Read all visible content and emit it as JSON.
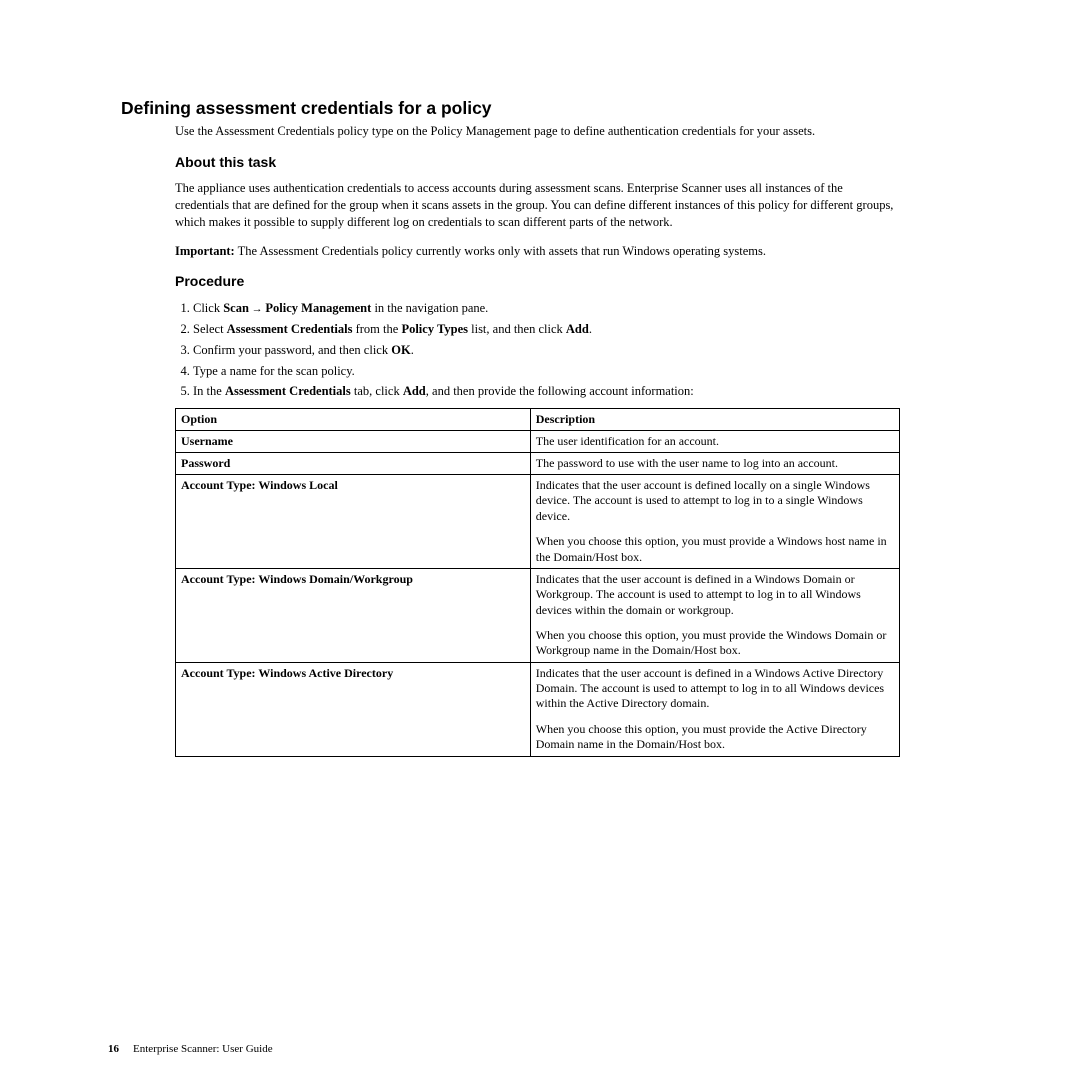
{
  "section_title": "Defining assessment credentials for a policy",
  "intro": "Use the Assessment Credentials policy type on the Policy Management page to define authentication credentials for your assets.",
  "about_head": "About this task",
  "about_p1": "The appliance uses authentication credentials to access accounts during assessment scans. Enterprise Scanner uses all instances of the credentials that are defined for the group when it scans assets in the group. You can define different instances of this policy for different groups, which makes it possible to supply different log on credentials to scan different parts of the network.",
  "important_label": "Important:",
  "important_text": " The Assessment Credentials policy currently works only with assets that run Windows operating systems.",
  "procedure_head": "Procedure",
  "proc": {
    "s1a": "Click ",
    "s1b": "Scan",
    "s1c": " → ",
    "s1d": "Policy Management",
    "s1e": " in the navigation pane.",
    "s2a": "Select ",
    "s2b": "Assessment Credentials",
    "s2c": " from the ",
    "s2d": "Policy Types",
    "s2e": " list, and then click ",
    "s2f": "Add",
    "s2g": ".",
    "s3a": "Confirm your password, and then click ",
    "s3b": "OK",
    "s3c": ".",
    "s4": "Type a name for the scan policy.",
    "s5a": "In the ",
    "s5b": "Assessment Credentials",
    "s5c": " tab, click ",
    "s5d": "Add",
    "s5e": ", and then provide the following account information:"
  },
  "table": {
    "h1": "Option",
    "h2": "Description",
    "r1c1": "Username",
    "r1c2": "The user identification for an account.",
    "r2c1": "Password",
    "r2c2": "The password to use with the user name to log into an account.",
    "r3c1": "Account Type: Windows Local",
    "r3c2a": "Indicates that the user account is defined locally on a single Windows device. The account is used to attempt to log in to a single Windows device.",
    "r3c2b": "When you choose this option, you must provide a Windows host name in the Domain/Host box.",
    "r4c1": "Account Type: Windows Domain/Workgroup",
    "r4c2a": "Indicates that the user account is defined in a Windows Domain or Workgroup. The account is used to attempt to log in to all Windows devices within the domain or workgroup.",
    "r4c2b": "When you choose this option, you must provide the Windows Domain or Workgroup name in the Domain/Host box.",
    "r5c1": "Account Type: Windows Active Directory",
    "r5c2a": "Indicates that the user account is defined in a Windows Active Directory Domain. The account is used to attempt to log in to all Windows devices within the Active Directory domain.",
    "r5c2b": "When you choose this option, you must provide the Active Directory Domain name in the Domain/Host box."
  },
  "footer_page": "16",
  "footer_text": "Enterprise Scanner: User Guide"
}
